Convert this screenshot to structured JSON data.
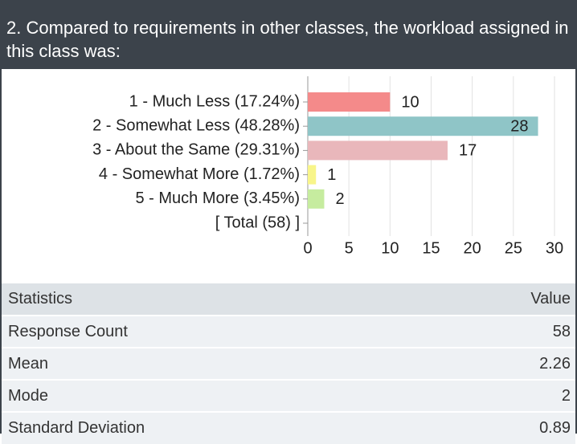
{
  "header": {
    "title": "2. Compared to requirements in other classes, the workload assigned in this class was:"
  },
  "chart_data": {
    "type": "hbar",
    "categories": [
      "1 - Much Less (17.24%)",
      "2 - Somewhat Less (48.28%)",
      "3 - About the Same (29.31%)",
      "4 - Somewhat More (1.72%)",
      "5 - Much More (3.45%)",
      "[ Total (58) ]"
    ],
    "values": [
      10,
      28,
      17,
      1,
      2,
      null
    ],
    "colors": [
      "#f48a8a",
      "#8fc5c7",
      "#e9b7bb",
      "#f8f58a",
      "#c6ec9f",
      null
    ],
    "xlim": [
      0,
      30
    ],
    "xticks": [
      0,
      5,
      10,
      15,
      20,
      25,
      30
    ],
    "grid": true
  },
  "table": {
    "header": [
      "Statistics",
      "Value"
    ],
    "rows": [
      [
        "Response Count",
        "58"
      ],
      [
        "Mean",
        "2.26"
      ],
      [
        "Mode",
        "2"
      ],
      [
        "Standard Deviation",
        "0.89"
      ]
    ]
  }
}
